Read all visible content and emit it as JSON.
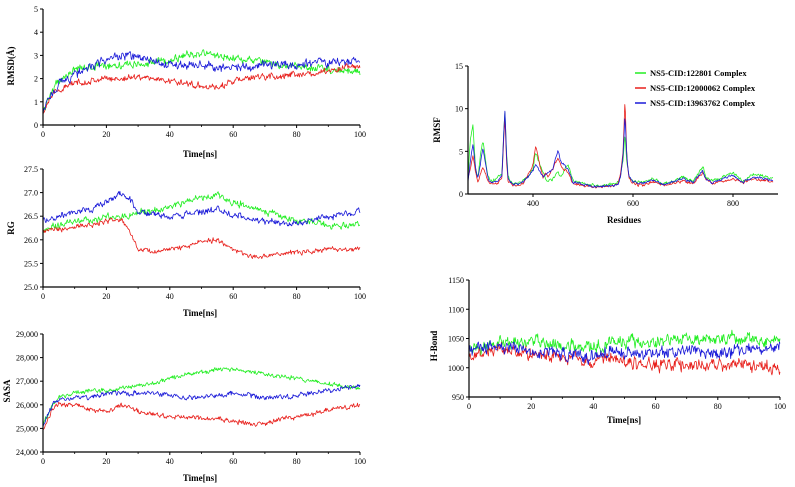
{
  "colors": {
    "green": "#22ee22",
    "red": "#e8201c",
    "blue": "#1a1ad8",
    "axis": "#000000"
  },
  "legend": {
    "entries": [
      {
        "label": "NS5-CID:122801 Complex",
        "color": "#22ee22"
      },
      {
        "label": "NS5-CID:12000062 Complex",
        "color": "#e8201c"
      },
      {
        "label": "NS5-CID:13963762 Complex",
        "color": "#1a1ad8"
      }
    ]
  },
  "chart_data": [
    {
      "id": "rmsd",
      "type": "line",
      "xlabel": "Time[ns]",
      "ylabel": "RMSD(Å)",
      "xlim": [
        0,
        100
      ],
      "ylim": [
        0,
        5
      ],
      "xticks": [
        0,
        20,
        40,
        60,
        80,
        100
      ],
      "yticks": [
        0,
        1,
        2,
        3,
        4,
        5
      ],
      "ytick_labels": [
        "0",
        "1",
        "2",
        "3",
        "4",
        "5"
      ],
      "x": [
        0,
        2,
        5,
        8,
        10,
        15,
        20,
        25,
        30,
        35,
        40,
        45,
        50,
        55,
        60,
        65,
        70,
        75,
        80,
        85,
        90,
        95,
        100
      ],
      "series": [
        {
          "color": "#22ee22",
          "noise": 0.22,
          "values": [
            0.5,
            1.3,
            1.9,
            2.2,
            2.4,
            2.5,
            2.6,
            2.6,
            2.6,
            2.7,
            2.8,
            3.0,
            3.1,
            3.0,
            2.9,
            2.8,
            2.7,
            2.6,
            2.5,
            2.5,
            2.4,
            2.3,
            2.3
          ]
        },
        {
          "color": "#e8201c",
          "noise": 0.18,
          "values": [
            0.5,
            1.2,
            1.5,
            1.7,
            1.8,
            1.9,
            2.0,
            2.0,
            2.1,
            2.0,
            1.9,
            1.8,
            1.7,
            1.6,
            1.9,
            2.0,
            2.1,
            2.1,
            2.2,
            2.2,
            2.3,
            2.5,
            2.5
          ]
        },
        {
          "color": "#1a1ad8",
          "noise": 0.25,
          "values": [
            0.5,
            1.2,
            1.8,
            2.0,
            2.2,
            2.5,
            2.8,
            3.0,
            2.9,
            2.7,
            2.6,
            2.6,
            2.6,
            2.5,
            2.5,
            2.5,
            2.6,
            2.6,
            2.6,
            2.7,
            2.7,
            2.8,
            2.7
          ]
        }
      ]
    },
    {
      "id": "rmsf",
      "type": "line",
      "xlabel": "Residues",
      "ylabel": "RMSF",
      "xlim": [
        270,
        890
      ],
      "ylim": [
        0,
        15
      ],
      "xticks": [
        400,
        600,
        800
      ],
      "yticks": [
        0,
        5,
        10,
        15
      ],
      "ytick_labels": [
        "0",
        "5",
        "10",
        "15"
      ],
      "x": [
        270,
        275,
        280,
        285,
        290,
        295,
        300,
        305,
        310,
        320,
        330,
        338,
        341,
        344,
        347,
        350,
        360,
        370,
        380,
        390,
        400,
        405,
        410,
        415,
        420,
        425,
        430,
        440,
        450,
        455,
        460,
        470,
        480,
        500,
        520,
        540,
        560,
        570,
        575,
        580,
        584,
        588,
        592,
        600,
        620,
        640,
        660,
        680,
        700,
        720,
        740,
        745,
        760,
        780,
        800,
        820,
        840,
        860,
        880
      ],
      "series": [
        {
          "color": "#22ee22",
          "noise": 0.25,
          "values": [
            2.0,
            6.5,
            8.2,
            3.0,
            2.0,
            4.8,
            6.2,
            4.0,
            2.0,
            1.5,
            2.0,
            2.5,
            7.0,
            9.8,
            5.0,
            2.0,
            1.2,
            1.2,
            1.5,
            2.0,
            3.0,
            4.8,
            4.0,
            3.2,
            2.5,
            2.0,
            1.5,
            1.8,
            2.5,
            2.0,
            2.5,
            3.5,
            1.5,
            1.2,
            1.0,
            1.0,
            1.1,
            1.3,
            2.0,
            4.0,
            7.0,
            3.5,
            2.0,
            1.5,
            1.3,
            1.8,
            1.2,
            1.5,
            2.0,
            1.5,
            3.2,
            2.0,
            1.5,
            2.0,
            2.5,
            1.5,
            2.3,
            2.0,
            1.8
          ]
        },
        {
          "color": "#e8201c",
          "noise": 0.2,
          "values": [
            1.8,
            3.0,
            4.5,
            2.5,
            1.5,
            2.5,
            3.2,
            2.5,
            1.5,
            1.2,
            1.3,
            2.0,
            6.0,
            9.0,
            4.0,
            1.5,
            1.0,
            1.0,
            1.3,
            2.2,
            3.5,
            5.5,
            4.5,
            3.0,
            2.0,
            2.5,
            2.0,
            3.0,
            4.2,
            3.5,
            3.0,
            2.5,
            1.2,
            1.0,
            0.8,
            0.8,
            1.0,
            1.2,
            2.2,
            5.0,
            11.0,
            4.0,
            1.8,
            1.2,
            1.0,
            1.5,
            1.0,
            1.2,
            1.5,
            1.2,
            2.5,
            1.8,
            1.2,
            1.5,
            1.8,
            1.3,
            1.8,
            1.6,
            1.5
          ]
        },
        {
          "color": "#1a1ad8",
          "noise": 0.2,
          "values": [
            1.5,
            4.0,
            6.0,
            3.0,
            1.8,
            3.5,
            5.5,
            3.5,
            1.8,
            1.3,
            1.5,
            2.2,
            6.5,
            10.0,
            4.5,
            1.8,
            1.1,
            1.1,
            1.4,
            2.0,
            2.8,
            3.5,
            3.0,
            2.5,
            2.0,
            2.3,
            2.5,
            3.0,
            5.2,
            4.0,
            3.5,
            2.8,
            1.4,
            1.1,
            0.9,
            0.9,
            1.0,
            1.2,
            2.0,
            4.5,
            9.2,
            4.0,
            2.0,
            1.4,
            1.2,
            1.6,
            1.1,
            1.4,
            1.8,
            1.4,
            2.8,
            1.8,
            1.3,
            1.8,
            2.2,
            1.4,
            2.0,
            1.8,
            1.6
          ]
        }
      ]
    },
    {
      "id": "rg",
      "type": "line",
      "xlabel": "Time[ns]",
      "ylabel": "RG",
      "xlim": [
        0,
        100
      ],
      "ylim": [
        25.0,
        27.5
      ],
      "xticks": [
        0,
        20,
        40,
        60,
        80,
        100
      ],
      "yticks": [
        25.0,
        25.5,
        26.0,
        26.5,
        27.0,
        27.5
      ],
      "ytick_labels": [
        "25.0",
        "25.5",
        "26.0",
        "26.5",
        "27.0",
        "27.5"
      ],
      "x": [
        0,
        5,
        10,
        15,
        20,
        25,
        28,
        30,
        35,
        40,
        45,
        50,
        55,
        60,
        65,
        70,
        75,
        80,
        85,
        90,
        95,
        100
      ],
      "series": [
        {
          "color": "#22ee22",
          "noise": 0.09,
          "values": [
            26.2,
            26.3,
            26.4,
            26.4,
            26.5,
            26.5,
            26.5,
            26.6,
            26.6,
            26.7,
            26.8,
            26.9,
            26.95,
            26.8,
            26.7,
            26.6,
            26.5,
            26.4,
            26.4,
            26.3,
            26.3,
            26.3
          ]
        },
        {
          "color": "#e8201c",
          "noise": 0.07,
          "values": [
            26.2,
            26.2,
            26.3,
            26.3,
            26.4,
            26.4,
            26.1,
            25.8,
            25.75,
            25.8,
            25.85,
            25.95,
            26.0,
            25.8,
            25.65,
            25.65,
            25.7,
            25.75,
            25.75,
            25.8,
            25.8,
            25.8
          ]
        },
        {
          "color": "#1a1ad8",
          "noise": 0.09,
          "values": [
            26.4,
            26.5,
            26.6,
            26.65,
            26.8,
            27.0,
            26.8,
            26.6,
            26.55,
            26.5,
            26.55,
            26.6,
            26.65,
            26.55,
            26.45,
            26.4,
            26.35,
            26.35,
            26.4,
            26.5,
            26.55,
            26.6
          ]
        }
      ]
    },
    {
      "id": "hbond",
      "type": "line",
      "xlabel": "Time[ns]",
      "ylabel": "H-Bond",
      "xlim": [
        0,
        100
      ],
      "ylim": [
        950,
        1150
      ],
      "xticks": [
        0,
        20,
        40,
        60,
        80,
        100
      ],
      "yticks": [
        950,
        1000,
        1050,
        1100,
        1150
      ],
      "ytick_labels": [
        "950",
        "1000",
        "1050",
        "1100",
        "1150"
      ],
      "x": [
        0,
        10,
        20,
        30,
        40,
        45,
        50,
        60,
        70,
        80,
        90,
        100
      ],
      "series": [
        {
          "color": "#22ee22",
          "noise": 14,
          "values": [
            1030,
            1040,
            1045,
            1040,
            1035,
            1040,
            1045,
            1045,
            1050,
            1050,
            1050,
            1045
          ]
        },
        {
          "color": "#e8201c",
          "noise": 14,
          "values": [
            1020,
            1030,
            1025,
            1020,
            1010,
            1020,
            1010,
            1005,
            1005,
            1005,
            1005,
            1000
          ]
        },
        {
          "color": "#1a1ad8",
          "noise": 14,
          "values": [
            1030,
            1035,
            1030,
            1025,
            1020,
            1030,
            1025,
            1025,
            1030,
            1025,
            1030,
            1035
          ]
        }
      ]
    },
    {
      "id": "sasa",
      "type": "line",
      "xlabel": "Time[ns]",
      "ylabel": "SASA",
      "xlim": [
        0,
        100
      ],
      "ylim": [
        24000,
        29000
      ],
      "xticks": [
        0,
        20,
        40,
        60,
        80,
        100
      ],
      "yticks": [
        24000,
        25000,
        26000,
        27000,
        28000,
        29000
      ],
      "ytick_labels": [
        "24,000",
        "25,000",
        "26,000",
        "27,000",
        "28,000",
        "29,000"
      ],
      "x": [
        0,
        3,
        5,
        10,
        15,
        20,
        25,
        30,
        35,
        40,
        45,
        50,
        55,
        60,
        65,
        70,
        75,
        80,
        85,
        90,
        95,
        100
      ],
      "series": [
        {
          "color": "#22ee22",
          "noise": 130,
          "values": [
            25200,
            26000,
            26300,
            26500,
            26600,
            26600,
            26700,
            26800,
            26900,
            27100,
            27300,
            27400,
            27500,
            27500,
            27400,
            27300,
            27200,
            27100,
            27000,
            26900,
            26800,
            26700
          ]
        },
        {
          "color": "#e8201c",
          "noise": 130,
          "values": [
            25000,
            25800,
            26000,
            26000,
            25800,
            25700,
            26000,
            25700,
            25600,
            25500,
            25500,
            25400,
            25400,
            25300,
            25200,
            25200,
            25400,
            25500,
            25600,
            25800,
            25900,
            26000
          ]
        },
        {
          "color": "#1a1ad8",
          "noise": 130,
          "values": [
            25100,
            26000,
            26200,
            26300,
            26300,
            26500,
            26500,
            26500,
            26500,
            26400,
            26300,
            26300,
            26400,
            26500,
            26400,
            26300,
            26300,
            26400,
            26500,
            26600,
            26700,
            26800
          ]
        }
      ]
    }
  ]
}
